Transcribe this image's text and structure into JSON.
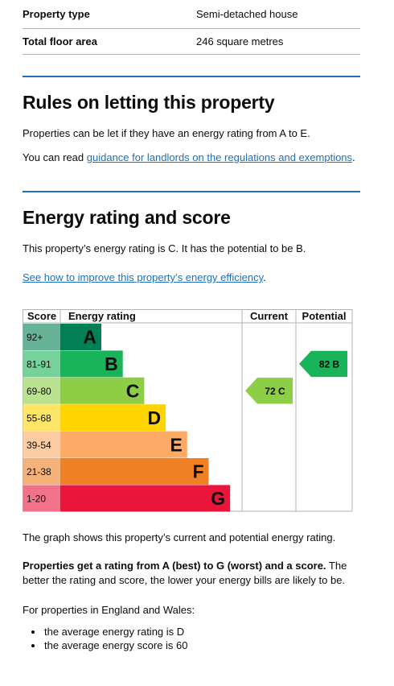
{
  "summary": [
    {
      "key": "Property type",
      "value": "Semi-detached house"
    },
    {
      "key": "Total floor area",
      "value": "246 square metres"
    }
  ],
  "rules": {
    "heading": "Rules on letting this property",
    "para1": "Properties can be let if they have an energy rating from A to E.",
    "para2_prefix": "You can read ",
    "para2_link": "guidance for landlords on the regulations and exemptions",
    "para2_suffix": "."
  },
  "energy": {
    "heading": "Energy rating and score",
    "intro": "This property’s energy rating is C. It has the potential to be B.",
    "link": "See how to improve this property’s energy efficiency",
    "link_suffix": "."
  },
  "chart_data": {
    "type": "table",
    "headers": {
      "score": "Score",
      "rating": "Energy rating",
      "current": "Current",
      "potential": "Potential"
    },
    "bands": [
      {
        "letter": "A",
        "range": "92+",
        "color": "#008054",
        "light": "#66b398"
      },
      {
        "letter": "B",
        "range": "81-91",
        "color": "#19b459",
        "light": "#75d29b"
      },
      {
        "letter": "C",
        "range": "69-80",
        "color": "#8dce46",
        "light": "#bbe290"
      },
      {
        "letter": "D",
        "range": "55-68",
        "color": "#ffd500",
        "light": "#ffe666"
      },
      {
        "letter": "E",
        "range": "39-54",
        "color": "#fcaa65",
        "light": "#fdcca3"
      },
      {
        "letter": "F",
        "range": "21-38",
        "color": "#ef8023",
        "light": "#f5b37b"
      },
      {
        "letter": "G",
        "range": "1-20",
        "color": "#e9153b",
        "light": "#f27389"
      }
    ],
    "current": {
      "score": 72,
      "band": "C",
      "label": "72  C"
    },
    "potential": {
      "score": 82,
      "band": "B",
      "label": "82  B"
    }
  },
  "after": {
    "graph_note": "The graph shows this property’s current and potential energy rating.",
    "bold": "Properties get a rating from A (best) to G (worst) and a score.",
    "rest": " The better the rating and score, the lower your energy bills are likely to be.",
    "england": "For properties in England and Wales:",
    "bullets": [
      "the average energy rating is D",
      "the average energy score is 60"
    ]
  }
}
